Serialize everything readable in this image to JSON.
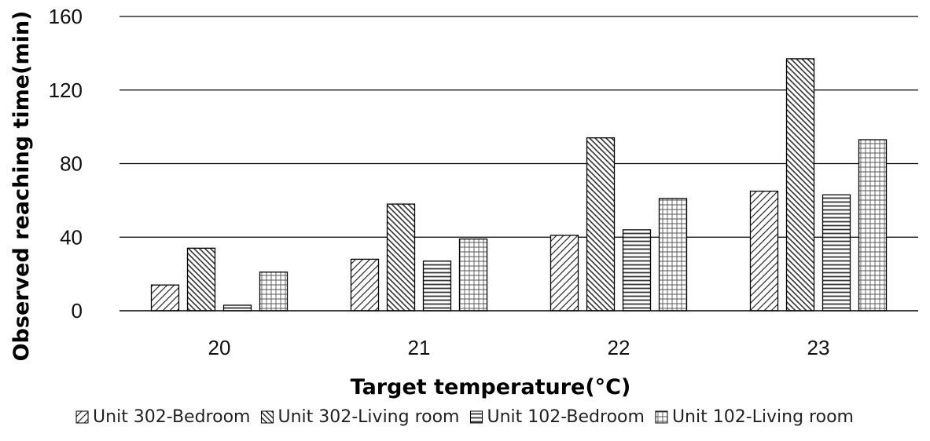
{
  "chart_data": {
    "type": "bar",
    "xlabel": "Target temperature(°C)",
    "ylabel": "Observed reaching time(min)",
    "categories": [
      "20",
      "21",
      "22",
      "23"
    ],
    "ylim": [
      0,
      160
    ],
    "yticks": [
      0,
      40,
      80,
      120,
      160
    ],
    "grid": "horizontal",
    "legend_position": "bottom",
    "series": [
      {
        "name": "Unit 302-Bedroom",
        "pattern": "diagonal-up",
        "values": [
          14,
          28,
          41,
          65
        ]
      },
      {
        "name": "Unit 302-Living room",
        "pattern": "diagonal-down",
        "values": [
          34,
          58,
          94,
          137
        ]
      },
      {
        "name": "Unit 102-Bedroom",
        "pattern": "horizontal-lines",
        "values": [
          3,
          27,
          44,
          63
        ]
      },
      {
        "name": "Unit 102-Living room",
        "pattern": "grid",
        "values": [
          21,
          39,
          61,
          93
        ]
      }
    ]
  }
}
